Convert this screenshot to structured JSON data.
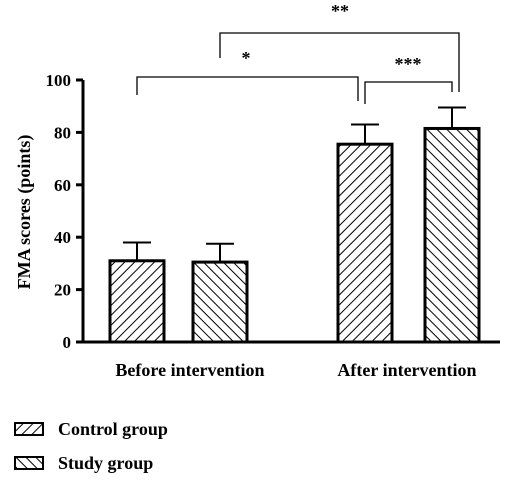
{
  "chart_data": {
    "type": "bar",
    "title": "",
    "ylabel": "FMA  scores (points)",
    "xlabel": "",
    "ylim": [
      0,
      100
    ],
    "yticks": [
      0,
      20,
      40,
      60,
      80,
      100
    ],
    "categories": [
      "Before intervention",
      "After intervention"
    ],
    "series": [
      {
        "name": "Control group",
        "values": [
          31,
          75.5
        ],
        "errors": [
          7,
          7.5
        ],
        "pattern": "forward-hatch"
      },
      {
        "name": "Study group",
        "values": [
          30.5,
          81.5
        ],
        "errors": [
          7,
          8
        ],
        "pattern": "back-hatch"
      }
    ],
    "significance": [
      {
        "label": "*",
        "from": "Before intervention",
        "to": "After intervention: Control group"
      },
      {
        "label": "**",
        "from": "Before intervention",
        "to": "After intervention: Study group"
      },
      {
        "label": "***",
        "from": "After intervention: Control group",
        "to": "After intervention: Study group"
      }
    ],
    "legend_position": "bottom-left"
  }
}
